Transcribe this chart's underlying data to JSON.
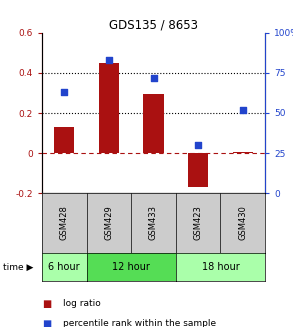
{
  "title": "GDS135 / 8653",
  "categories": [
    "GSM428",
    "GSM429",
    "GSM433",
    "GSM423",
    "GSM430"
  ],
  "log_ratio": [
    0.13,
    0.45,
    0.295,
    -0.17,
    0.005
  ],
  "percentile_rank": [
    63,
    83,
    72,
    30,
    52
  ],
  "left_ylim": [
    -0.2,
    0.6
  ],
  "right_ylim": [
    0,
    100
  ],
  "left_yticks": [
    -0.2,
    0.0,
    0.2,
    0.4,
    0.6
  ],
  "right_yticks": [
    0,
    25,
    50,
    75,
    100
  ],
  "left_yticklabels": [
    "-0.2",
    "0",
    "0.2",
    "0.4",
    "0.6"
  ],
  "right_yticklabels": [
    "0",
    "25",
    "50",
    "75",
    "100%"
  ],
  "bar_color": "#aa1111",
  "square_color": "#2244cc",
  "dotted_line_y": [
    0.2,
    0.4
  ],
  "dashed_line_y": 0.0,
  "time_groups": [
    {
      "label": "6 hour",
      "start": 0,
      "end": 1,
      "color": "#aaffaa"
    },
    {
      "label": "12 hour",
      "start": 1,
      "end": 3,
      "color": "#55dd55"
    },
    {
      "label": "18 hour",
      "start": 3,
      "end": 5,
      "color": "#aaffaa"
    }
  ],
  "bar_width": 0.45,
  "background_color": "#ffffff",
  "label_log_ratio": "log ratio",
  "label_percentile": "percentile rank within the sample",
  "time_label": "time"
}
